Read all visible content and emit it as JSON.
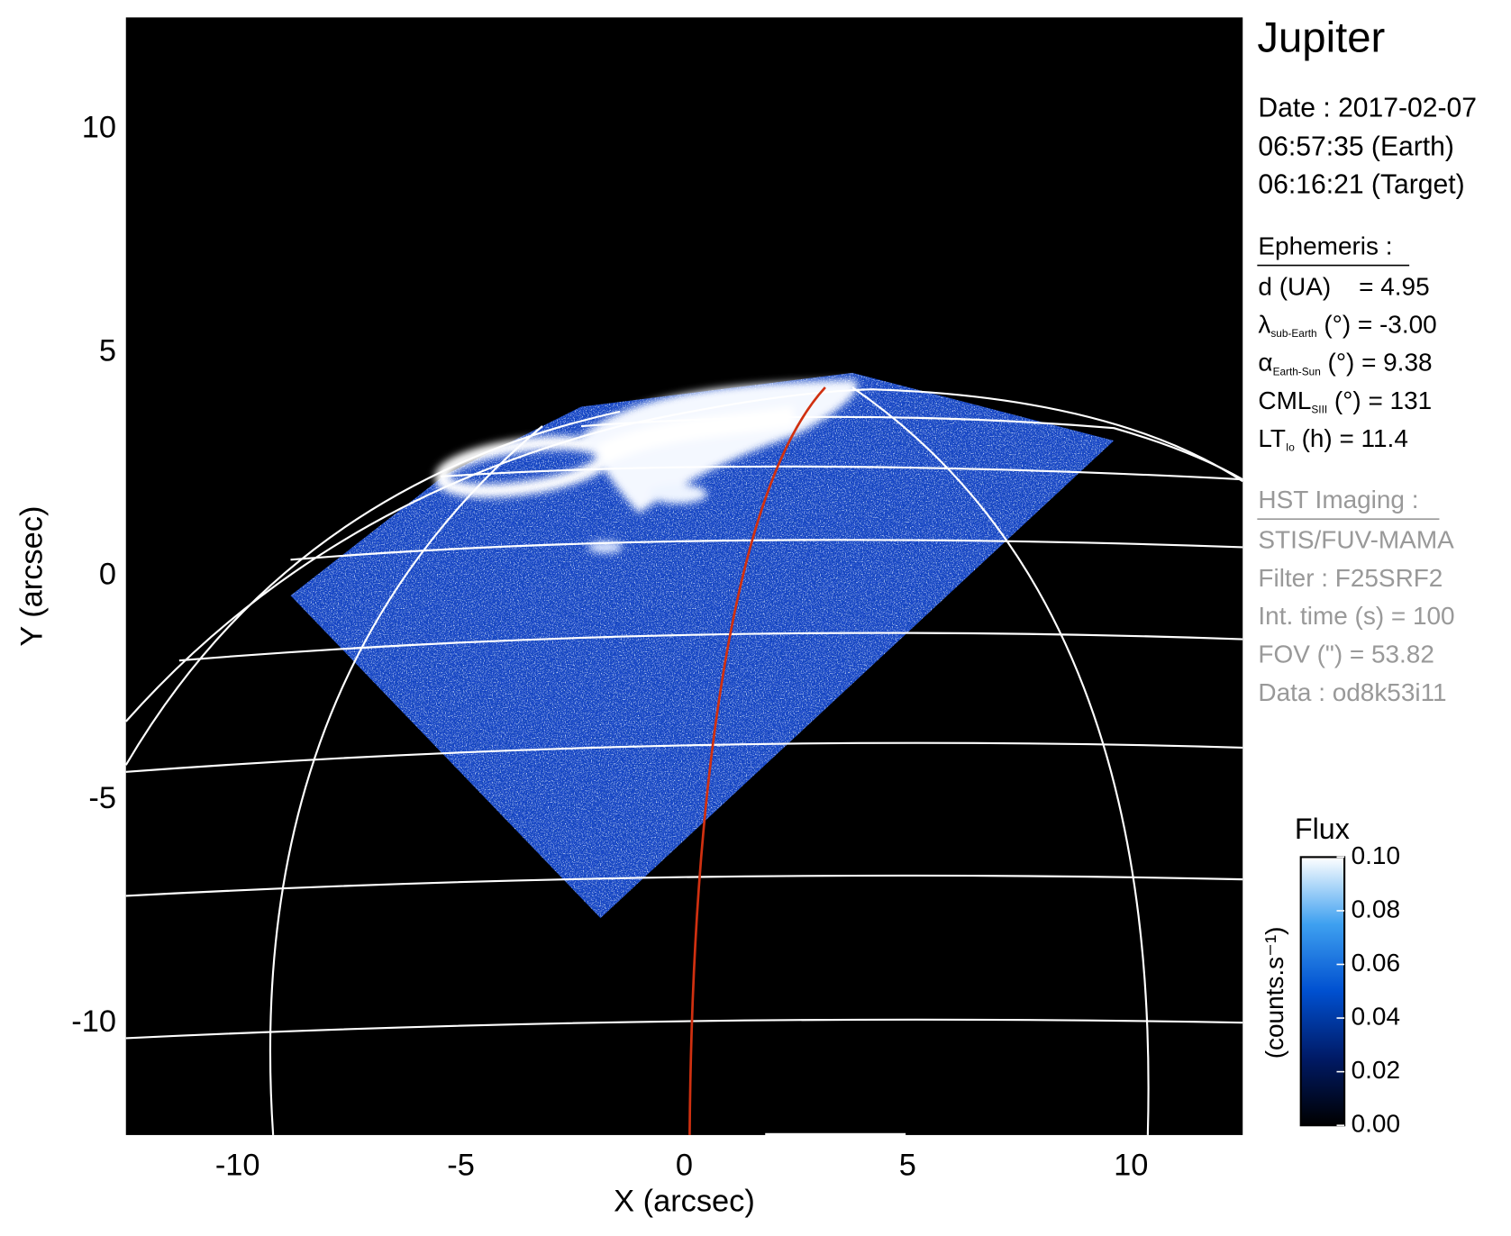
{
  "chart_data": {
    "type": "image",
    "xlabel": "X (arcsec)",
    "ylabel": "Y (arcsec)",
    "xlim": [
      -12.5,
      12.5
    ],
    "ylim": [
      -12.5,
      12.5
    ],
    "xticks": [
      -10,
      -5,
      0,
      5,
      10
    ],
    "yticks": [
      10,
      5,
      0,
      -5,
      -10
    ],
    "colorbar": {
      "title": "Flux",
      "label": "(counts.s⁻¹)",
      "lim": [
        0,
        0.1
      ],
      "ticks": [
        {
          "value": 0.1,
          "label": "0.10"
        },
        0.08,
        0.06,
        0.04,
        0.02,
        {
          "value": 0,
          "label": "0.00"
        }
      ],
      "colormap": [
        "#000000",
        "#001a66",
        "#0050d0",
        "#3ea0f0",
        "#ffffff"
      ]
    }
  },
  "info": {
    "title": "Jupiter",
    "date": [
      "Date : 2017-02-07",
      "06:57:35 (Earth)",
      "06:16:21 (Target)"
    ],
    "ephemeris_header": "Ephemeris :",
    "ephemeris": [
      {
        "main": "d (UA)    = 4.95"
      },
      {
        "main": "λ",
        "sub": "sub-Earth",
        "rest": " (°) = -3.00"
      },
      {
        "main": "α",
        "sub": "Earth-Sun",
        "rest": " (°) = 9.38"
      },
      {
        "main": "CML",
        "sub": "SIII",
        "rest": " (°) = 131"
      },
      {
        "main": "LT",
        "sub": "Io",
        "rest": " (h) = 11.4"
      }
    ],
    "hst_header": "HST Imaging :",
    "hst": [
      "STIS/FUV-MAMA",
      "Filter : F25SRF2",
      "Int. time (s) = 100",
      "FOV (\") = 53.82",
      "Data : od8k53i11"
    ]
  }
}
